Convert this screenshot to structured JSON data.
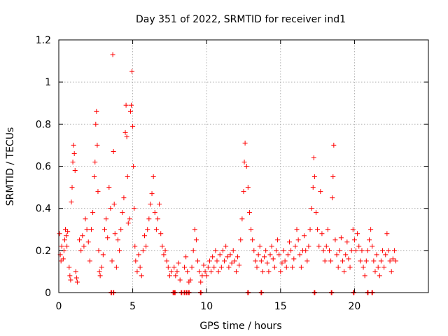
{
  "chart_data": {
    "type": "scatter",
    "title": "Day 351 of 2022, SRMTID for receiver ind1",
    "xlabel": "GPS time / hours",
    "ylabel": "SRMTID / TECUs",
    "xlim": [
      0,
      25
    ],
    "ylim": [
      0,
      1.2
    ],
    "xticks": [
      0,
      5,
      10,
      15,
      20
    ],
    "xtick_labels": [
      "0",
      "5",
      "10",
      "15",
      "20"
    ],
    "yticks": [
      0,
      0.2,
      0.4,
      0.6,
      0.8,
      1.0,
      1.2
    ],
    "ytick_labels": [
      "0",
      "0.2",
      "0.4",
      "0.6",
      "0.8",
      "1",
      "1.2"
    ],
    "grid": true,
    "marker": "+",
    "color": "#ff0000",
    "series": [
      {
        "name": "ind1",
        "points": [
          [
            0.05,
            0.28
          ],
          [
            0.1,
            0.18
          ],
          [
            0.15,
            0.15
          ],
          [
            0.2,
            0.22
          ],
          [
            0.3,
            0.16
          ],
          [
            0.35,
            0.2
          ],
          [
            0.4,
            0.25
          ],
          [
            0.45,
            0.3
          ],
          [
            0.5,
            0.27
          ],
          [
            0.55,
            0.22
          ],
          [
            0.6,
            0.29
          ],
          [
            0.7,
            0.12
          ],
          [
            0.75,
            0.08
          ],
          [
            0.8,
            0.06
          ],
          [
            0.85,
            0.43
          ],
          [
            0.9,
            0.5
          ],
          [
            0.95,
            0.62
          ],
          [
            1.0,
            0.7
          ],
          [
            1.05,
            0.66
          ],
          [
            1.1,
            0.58
          ],
          [
            1.15,
            0.1
          ],
          [
            1.2,
            0.07
          ],
          [
            1.25,
            0.05
          ],
          [
            1.4,
            0.25
          ],
          [
            1.5,
            0.2
          ],
          [
            1.6,
            0.27
          ],
          [
            1.7,
            0.22
          ],
          [
            1.8,
            0.35
          ],
          [
            1.9,
            0.3
          ],
          [
            2.0,
            0.24
          ],
          [
            2.1,
            0.15
          ],
          [
            2.2,
            0.3
          ],
          [
            2.3,
            0.38
          ],
          [
            2.4,
            0.55
          ],
          [
            2.45,
            0.62
          ],
          [
            2.5,
            0.8
          ],
          [
            2.55,
            0.86
          ],
          [
            2.6,
            0.7
          ],
          [
            2.65,
            0.48
          ],
          [
            2.7,
            0.2
          ],
          [
            2.75,
            0.1
          ],
          [
            2.8,
            0.08
          ],
          [
            2.9,
            0.12
          ],
          [
            3.0,
            0.18
          ],
          [
            3.1,
            0.3
          ],
          [
            3.2,
            0.35
          ],
          [
            3.3,
            0.26
          ],
          [
            3.4,
            0.5
          ],
          [
            3.5,
            0.4
          ],
          [
            3.6,
            0.15
          ],
          [
            3.65,
            1.13
          ],
          [
            3.7,
            0.67
          ],
          [
            3.75,
            0.42
          ],
          [
            3.8,
            0.28
          ],
          [
            3.9,
            0.12
          ],
          [
            4.0,
            0.25
          ],
          [
            4.1,
            0.2
          ],
          [
            4.2,
            0.3
          ],
          [
            4.3,
            0.38
          ],
          [
            4.4,
            0.45
          ],
          [
            4.5,
            0.76
          ],
          [
            4.55,
            0.89
          ],
          [
            4.6,
            0.74
          ],
          [
            4.65,
            0.55
          ],
          [
            4.7,
            0.33
          ],
          [
            4.8,
            0.35
          ],
          [
            4.85,
            0.86
          ],
          [
            4.9,
            0.89
          ],
          [
            4.95,
            1.05
          ],
          [
            5.0,
            0.79
          ],
          [
            5.05,
            0.6
          ],
          [
            5.1,
            0.4
          ],
          [
            5.15,
            0.22
          ],
          [
            5.2,
            0.15
          ],
          [
            5.3,
            0.1
          ],
          [
            5.4,
            0.18
          ],
          [
            5.5,
            0.12
          ],
          [
            5.6,
            0.08
          ],
          [
            5.7,
            0.2
          ],
          [
            5.8,
            0.27
          ],
          [
            5.9,
            0.22
          ],
          [
            6.0,
            0.3
          ],
          [
            6.1,
            0.35
          ],
          [
            6.2,
            0.42
          ],
          [
            6.3,
            0.47
          ],
          [
            6.4,
            0.55
          ],
          [
            6.5,
            0.38
          ],
          [
            6.6,
            0.3
          ],
          [
            6.7,
            0.35
          ],
          [
            6.8,
            0.42
          ],
          [
            6.9,
            0.28
          ],
          [
            7.0,
            0.22
          ],
          [
            7.1,
            0.18
          ],
          [
            7.2,
            0.2
          ],
          [
            7.3,
            0.15
          ],
          [
            7.4,
            0.12
          ],
          [
            7.5,
            0.08
          ],
          [
            7.6,
            0.1
          ],
          [
            7.8,
            0.12
          ],
          [
            7.9,
            0.08
          ],
          [
            8.0,
            0.1
          ],
          [
            8.1,
            0.14
          ],
          [
            8.2,
            0.06
          ],
          [
            8.5,
            0.12
          ],
          [
            8.6,
            0.17
          ],
          [
            8.7,
            0.1
          ],
          [
            8.8,
            0.05
          ],
          [
            8.9,
            0.06
          ],
          [
            9.0,
            0.12
          ],
          [
            9.1,
            0.2
          ],
          [
            9.2,
            0.3
          ],
          [
            9.3,
            0.25
          ],
          [
            9.4,
            0.15
          ],
          [
            9.5,
            0.1
          ],
          [
            9.6,
            0.05
          ],
          [
            9.7,
            0.08
          ],
          [
            9.8,
            0.13
          ],
          [
            9.9,
            0.1
          ],
          [
            10.0,
            0.08
          ],
          [
            10.1,
            0.12
          ],
          [
            10.2,
            0.15
          ],
          [
            10.3,
            0.1
          ],
          [
            10.4,
            0.17
          ],
          [
            10.5,
            0.12
          ],
          [
            10.6,
            0.2
          ],
          [
            10.7,
            0.15
          ],
          [
            10.8,
            0.1
          ],
          [
            10.9,
            0.18
          ],
          [
            11.0,
            0.12
          ],
          [
            11.1,
            0.2
          ],
          [
            11.2,
            0.15
          ],
          [
            11.3,
            0.22
          ],
          [
            11.4,
            0.17
          ],
          [
            11.5,
            0.12
          ],
          [
            11.6,
            0.18
          ],
          [
            11.7,
            0.14
          ],
          [
            11.8,
            0.2
          ],
          [
            11.9,
            0.15
          ],
          [
            12.0,
            0.1
          ],
          [
            12.1,
            0.17
          ],
          [
            12.2,
            0.13
          ],
          [
            12.3,
            0.25
          ],
          [
            12.4,
            0.35
          ],
          [
            12.5,
            0.48
          ],
          [
            12.55,
            0.62
          ],
          [
            12.6,
            0.71
          ],
          [
            12.7,
            0.6
          ],
          [
            12.8,
            0.5
          ],
          [
            12.9,
            0.38
          ],
          [
            13.0,
            0.3
          ],
          [
            13.1,
            0.25
          ],
          [
            13.2,
            0.2
          ],
          [
            13.3,
            0.15
          ],
          [
            13.4,
            0.12
          ],
          [
            13.5,
            0.18
          ],
          [
            13.6,
            0.22
          ],
          [
            13.7,
            0.15
          ],
          [
            13.8,
            0.1
          ],
          [
            13.9,
            0.17
          ],
          [
            14.0,
            0.2
          ],
          [
            14.1,
            0.14
          ],
          [
            14.2,
            0.1
          ],
          [
            14.3,
            0.18
          ],
          [
            14.4,
            0.22
          ],
          [
            14.5,
            0.16
          ],
          [
            14.6,
            0.12
          ],
          [
            14.7,
            0.2
          ],
          [
            14.8,
            0.25
          ],
          [
            14.9,
            0.18
          ],
          [
            15.0,
            0.1
          ],
          [
            15.1,
            0.14
          ],
          [
            15.2,
            0.2
          ],
          [
            15.3,
            0.15
          ],
          [
            15.4,
            0.12
          ],
          [
            15.5,
            0.18
          ],
          [
            15.6,
            0.24
          ],
          [
            15.7,
            0.2
          ],
          [
            15.8,
            0.12
          ],
          [
            15.9,
            0.16
          ],
          [
            16.0,
            0.22
          ],
          [
            16.1,
            0.3
          ],
          [
            16.2,
            0.25
          ],
          [
            16.3,
            0.18
          ],
          [
            16.4,
            0.12
          ],
          [
            16.5,
            0.2
          ],
          [
            16.6,
            0.27
          ],
          [
            16.7,
            0.2
          ],
          [
            16.8,
            0.15
          ],
          [
            16.9,
            0.22
          ],
          [
            17.0,
            0.3
          ],
          [
            17.1,
            0.4
          ],
          [
            17.2,
            0.5
          ],
          [
            17.25,
            0.64
          ],
          [
            17.3,
            0.55
          ],
          [
            17.4,
            0.38
          ],
          [
            17.5,
            0.3
          ],
          [
            17.6,
            0.22
          ],
          [
            17.7,
            0.48
          ],
          [
            17.8,
            0.28
          ],
          [
            17.9,
            0.2
          ],
          [
            18.0,
            0.15
          ],
          [
            18.1,
            0.22
          ],
          [
            18.2,
            0.3
          ],
          [
            18.3,
            0.2
          ],
          [
            18.4,
            0.15
          ],
          [
            18.5,
            0.45
          ],
          [
            18.55,
            0.55
          ],
          [
            18.6,
            0.7
          ],
          [
            18.7,
            0.25
          ],
          [
            18.8,
            0.18
          ],
          [
            18.9,
            0.12
          ],
          [
            19.0,
            0.2
          ],
          [
            19.1,
            0.26
          ],
          [
            19.2,
            0.15
          ],
          [
            19.3,
            0.1
          ],
          [
            19.4,
            0.18
          ],
          [
            19.5,
            0.24
          ],
          [
            19.6,
            0.16
          ],
          [
            19.7,
            0.12
          ],
          [
            19.8,
            0.2
          ],
          [
            19.9,
            0.3
          ],
          [
            20.0,
            0.25
          ],
          [
            20.1,
            0.2
          ],
          [
            20.2,
            0.28
          ],
          [
            20.3,
            0.22
          ],
          [
            20.4,
            0.15
          ],
          [
            20.5,
            0.2
          ],
          [
            20.6,
            0.12
          ],
          [
            20.7,
            0.08
          ],
          [
            20.8,
            0.15
          ],
          [
            20.9,
            0.2
          ],
          [
            21.0,
            0.25
          ],
          [
            21.1,
            0.3
          ],
          [
            21.2,
            0.22
          ],
          [
            21.3,
            0.15
          ],
          [
            21.4,
            0.1
          ],
          [
            21.5,
            0.18
          ],
          [
            21.6,
            0.12
          ],
          [
            21.7,
            0.08
          ],
          [
            21.8,
            0.15
          ],
          [
            21.9,
            0.2
          ],
          [
            22.0,
            0.12
          ],
          [
            22.1,
            0.18
          ],
          [
            22.2,
            0.28
          ],
          [
            22.3,
            0.2
          ],
          [
            22.4,
            0.15
          ],
          [
            22.5,
            0.1
          ],
          [
            22.6,
            0.16
          ],
          [
            22.7,
            0.2
          ],
          [
            22.8,
            0.15
          ]
        ],
        "zero_markers_x": [
          3.55,
          3.7,
          7.75,
          7.85,
          8.3,
          8.5,
          8.65,
          8.8,
          9.6,
          12.8,
          13.7,
          17.3,
          18.45,
          19.95,
          20.9,
          21.2
        ]
      }
    ]
  }
}
